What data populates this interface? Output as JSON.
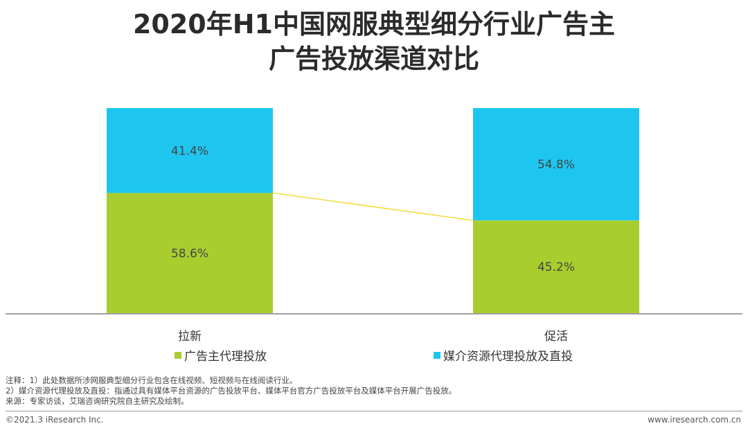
{
  "title": {
    "line1": "2020年H1中国网服典型细分行业广告主",
    "line2": "广告投放渠道对比"
  },
  "colors": {
    "agency": "#a9cd2f",
    "media": "#1ec6ef",
    "connector": "#f0dc3a",
    "axis": "#666666"
  },
  "chart_data": {
    "type": "bar",
    "stacked": true,
    "categories": [
      "拉新",
      "促活"
    ],
    "series": [
      {
        "name": "广告主代理投放",
        "values": [
          58.6,
          45.2
        ],
        "labels": [
          "58.6%",
          "45.2%"
        ]
      },
      {
        "name": "媒介资源代理投放及直投",
        "values": [
          41.4,
          54.8
        ],
        "labels": [
          "41.4%",
          "54.8%"
        ]
      }
    ],
    "ylim": [
      0,
      100
    ],
    "legend": "bottom"
  },
  "notes": {
    "line1": "注释：1）此处数据所涉网服典型细分行业包含在线视频、短视频与在线阅读行业。",
    "line2": "2）媒介资源代理投放及直投：指通过具有媒体平台资源的广告投放平台、媒体平台官方广告投放平台及媒体平台开展广告投放。",
    "line3": "来源：专家访谈，艾瑞咨询研究院自主研究及绘制。"
  },
  "footer": {
    "copyright": "©2021.3 iResearch Inc.",
    "website": "www.iresearch.com.cn"
  }
}
